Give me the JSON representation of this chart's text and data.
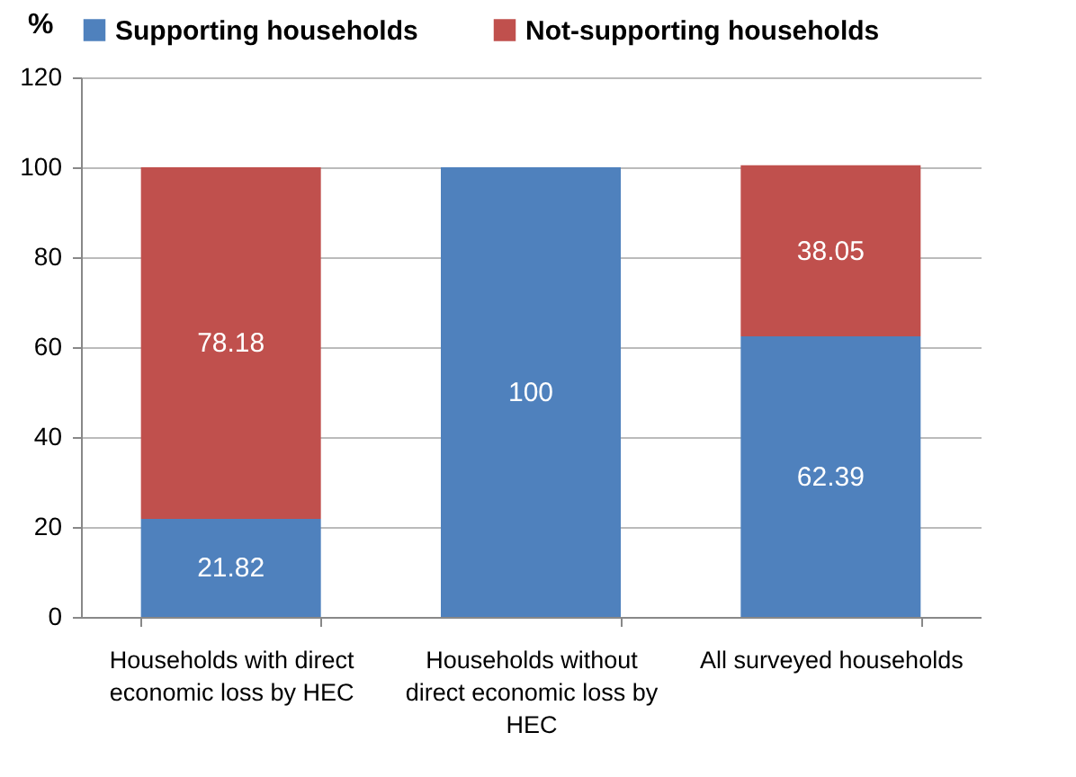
{
  "chart_data": {
    "type": "bar",
    "stacked": true,
    "ylabel": "%",
    "categories": [
      "Households with direct economic loss by HEC",
      "Households without direct economic loss by HEC",
      "All surveyed households"
    ],
    "series": [
      {
        "name": "Supporting households",
        "color": "#4f81bd",
        "values": [
          21.82,
          100,
          62.39
        ],
        "value_labels": [
          "21.82",
          "100",
          "62.39"
        ]
      },
      {
        "name": "Not-supporting households",
        "color": "#c0504d",
        "values": [
          78.18,
          0,
          38.05
        ],
        "value_labels": [
          "78.18",
          null,
          "38.05"
        ]
      }
    ],
    "ylim": [
      0,
      120
    ],
    "yticks": [
      0,
      20,
      40,
      60,
      80,
      100,
      120
    ],
    "grid": "y",
    "legend": "top"
  }
}
